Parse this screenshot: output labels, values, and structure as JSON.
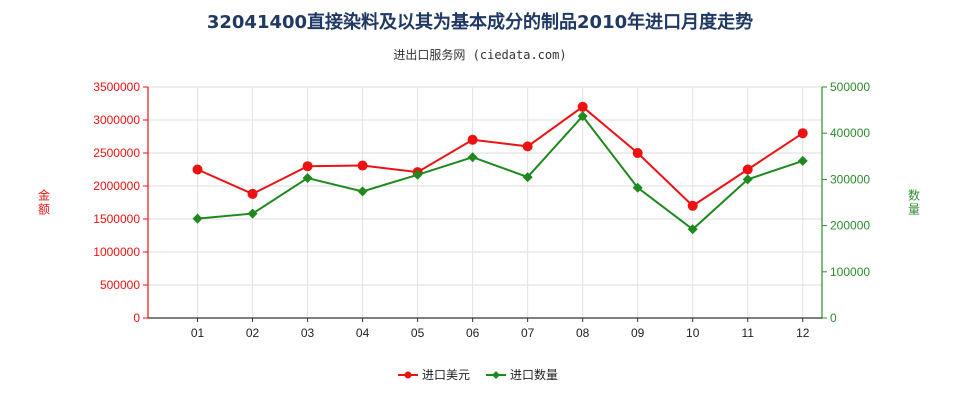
{
  "chart_data": {
    "type": "line",
    "title": "32041400直接染料及以其为基本成分的制品2010年进口月度走势",
    "subtitle": "进出口服务网 (ciedata.com)",
    "categories": [
      "01",
      "02",
      "03",
      "04",
      "05",
      "06",
      "07",
      "08",
      "09",
      "10",
      "11",
      "12"
    ],
    "y_left": {
      "label": "金额",
      "ylim": [
        0,
        3500000
      ],
      "ticks": [
        "0",
        "500000",
        "1000000",
        "1500000",
        "2000000",
        "2500000",
        "3000000",
        "3500000"
      ],
      "color": "#ee1111"
    },
    "y_right": {
      "label": "数量",
      "ylim": [
        0,
        500000
      ],
      "ticks": [
        "0",
        "100000",
        "200000",
        "300000",
        "400000",
        "500000"
      ],
      "color": "#2e8b2e"
    },
    "series": [
      {
        "name": "进口美元",
        "axis": "left",
        "color": "#ee1111",
        "marker": "circle",
        "values": [
          2250000,
          1880000,
          2300000,
          2310000,
          2210000,
          2700000,
          2600000,
          3200000,
          2500000,
          1700000,
          2250000,
          2800000
        ]
      },
      {
        "name": "进口数量",
        "axis": "right",
        "color": "#1e8a1e",
        "marker": "diamond",
        "values": [
          215000,
          226000,
          303000,
          274000,
          310000,
          348000,
          305000,
          437000,
          282000,
          192000,
          300000,
          340000
        ]
      }
    ],
    "grid": true,
    "legend_position": "bottom"
  }
}
